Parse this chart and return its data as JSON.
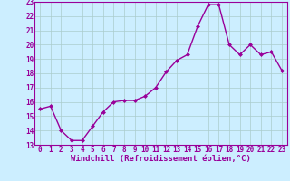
{
  "x": [
    0,
    1,
    2,
    3,
    4,
    5,
    6,
    7,
    8,
    9,
    10,
    11,
    12,
    13,
    14,
    15,
    16,
    17,
    18,
    19,
    20,
    21,
    22,
    23
  ],
  "y": [
    15.5,
    15.7,
    14.0,
    13.3,
    13.3,
    14.3,
    15.3,
    16.0,
    16.1,
    16.1,
    16.4,
    17.0,
    18.1,
    18.9,
    19.3,
    21.3,
    22.8,
    22.8,
    20.0,
    19.3,
    20.0,
    19.3,
    19.5,
    18.2
  ],
  "line_color": "#990099",
  "marker": "D",
  "marker_size": 2.0,
  "bg_color": "#cceeff",
  "grid_color": "#aacccc",
  "ylim": [
    13,
    23
  ],
  "xlim": [
    -0.5,
    23.5
  ],
  "yticks": [
    13,
    14,
    15,
    16,
    17,
    18,
    19,
    20,
    21,
    22,
    23
  ],
  "xticks": [
    0,
    1,
    2,
    3,
    4,
    5,
    6,
    7,
    8,
    9,
    10,
    11,
    12,
    13,
    14,
    15,
    16,
    17,
    18,
    19,
    20,
    21,
    22,
    23
  ],
  "xlabel": "Windchill (Refroidissement éolien,°C)",
  "xlabel_fontsize": 6.5,
  "tick_fontsize": 5.5,
  "line_width": 1.0
}
